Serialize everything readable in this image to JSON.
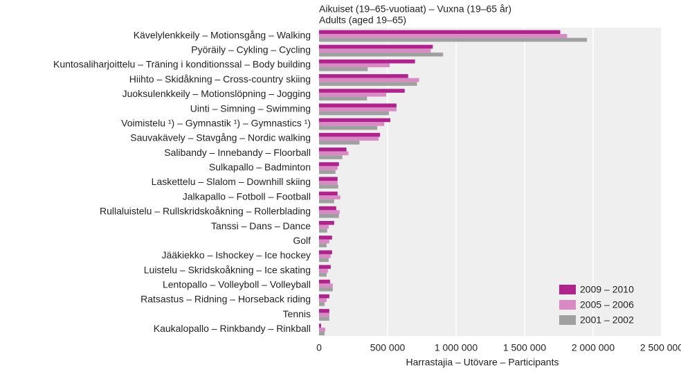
{
  "chart_data": {
    "type": "barh",
    "title": "Aikuiset (19–65-vuotiaat) – Vuxna (19–65 år)",
    "subtitle": "Adults (aged 19–65)",
    "x_label": "Harrastajia – Utövare – Participants",
    "categories": [
      "Kävelylenkkeily – Motionsgång – Walking",
      "Pyöräily – Cykling – Cycling",
      "Kuntosaliharjoittelu – Träning i konditionssal – Body building",
      "Hiihto – Skidåkning – Cross-country skiing",
      "Juoksulenkkeily – Motionslöpning – Jogging",
      "Uinti – Simning – Swimming",
      "Voimistelu ¹) – Gymnastik ¹) – Gymnastics ¹)",
      "Sauvakävely – Stavgång – Nordic walking",
      "Salibandy – Innebandy – Floorball",
      "Sulkapallo – Badminton",
      "Laskettelu – Slalom – Downhill skiing",
      "Jalkapallo – Fotboll – Football",
      "Rullaluistelu – Rullskridskoåkning – Rollerblading",
      "Tanssi – Dans – Dance",
      "Golf",
      "Jääkiekko – Ishockey – Ice hockey",
      "Luistelu – Skridskoåkning – Ice skating",
      "Lentopallo – Volleyboll – Volleyball",
      "Ratsastus – Ridning – Horseback riding",
      "Tennis",
      "Kaukalopallo – Rinkbandy – Rinkball"
    ],
    "series": [
      {
        "name": "2009 – 2010",
        "color": "#b0228c",
        "values": [
          1760000,
          830000,
          700000,
          650000,
          625000,
          565000,
          520000,
          445000,
          200000,
          145000,
          135000,
          135000,
          125000,
          110000,
          95000,
          95000,
          85000,
          80000,
          75000,
          75000,
          15000
        ]
      },
      {
        "name": "2005 – 2006",
        "color": "#d98ac5",
        "values": [
          1810000,
          815000,
          515000,
          730000,
          490000,
          565000,
          475000,
          435000,
          215000,
          135000,
          135000,
          155000,
          150000,
          70000,
          75000,
          85000,
          65000,
          100000,
          55000,
          75000,
          45000
        ]
      },
      {
        "name": "2001 – 2002",
        "color": "#a0a0a0",
        "values": [
          1955000,
          905000,
          355000,
          715000,
          350000,
          510000,
          425000,
          295000,
          170000,
          120000,
          140000,
          110000,
          145000,
          60000,
          55000,
          70000,
          55000,
          100000,
          40000,
          75000,
          40000
        ]
      }
    ],
    "xlim": [
      0,
      2500000
    ],
    "xticks": [
      0,
      {
        "value": 500000,
        "label": "500 000"
      },
      {
        "value": 1000000,
        "label": "1 000 000"
      },
      {
        "value": 1500000,
        "label": "1 500 000"
      },
      {
        "value": 2000000,
        "label": "2 000 000"
      },
      {
        "value": 2500000,
        "label": "2 500 000"
      }
    ],
    "grid": true,
    "legend": "lower right"
  }
}
